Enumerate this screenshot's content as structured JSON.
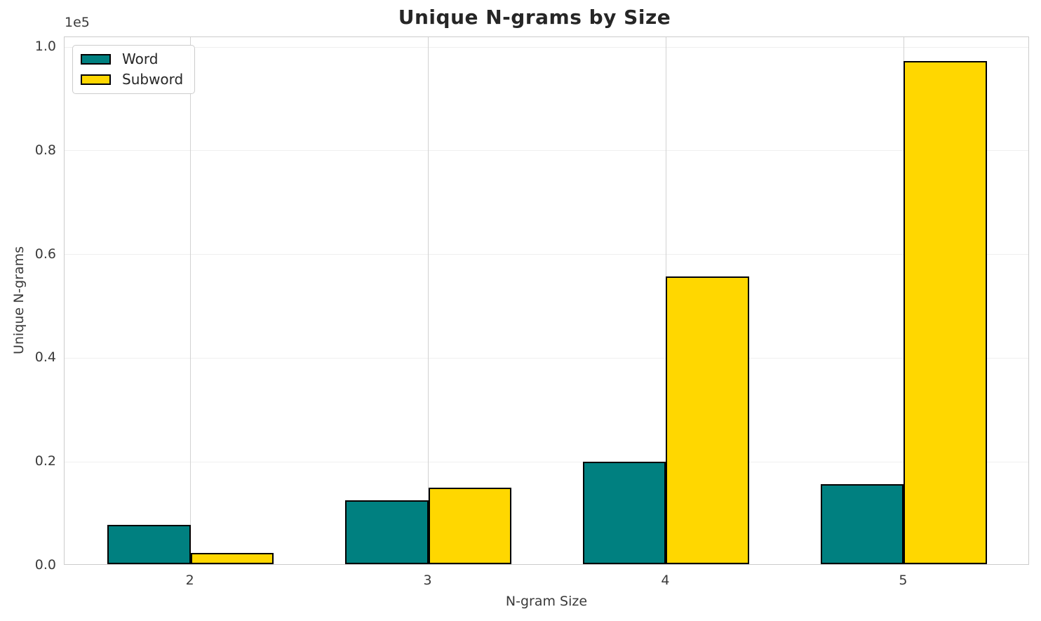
{
  "title": "Unique N-grams by Size",
  "axes": {
    "xlabel": "N-gram Size",
    "ylabel": "Unique N-grams",
    "offset_label": "1e5"
  },
  "legend": {
    "items": [
      {
        "label": "Word",
        "color": "#008080"
      },
      {
        "label": "Subword",
        "color": "#FFD700"
      }
    ]
  },
  "colors": {
    "word": "#008080",
    "subword": "#FFD700",
    "bar_edge": "#000000",
    "grid_horizontal": "#efefef",
    "grid_vertical": "#d2d2d2",
    "spine": "#cccccc",
    "title_text": "#262626",
    "tick_text": "#3a3a3a"
  },
  "chart_data": {
    "type": "bar",
    "title": "Unique N-grams by Size",
    "xlabel": "N-gram Size",
    "ylabel": "Unique N-grams",
    "y_scale_factor": "1e5",
    "categories": [
      2,
      3,
      4,
      5
    ],
    "series": [
      {
        "name": "Word",
        "color": "#008080",
        "values": [
          7600,
          12300,
          19700,
          15400
        ]
      },
      {
        "name": "Subword",
        "color": "#FFD700",
        "values": [
          2200,
          14800,
          55500,
          97000
        ]
      }
    ],
    "bar_width": 0.35,
    "xlim": [
      1.47,
      5.53
    ],
    "ylim": [
      0,
      101900
    ],
    "yticks": [
      0,
      20000,
      40000,
      60000,
      80000,
      100000
    ],
    "ytick_labels": [
      "0.0",
      "0.2",
      "0.4",
      "0.6",
      "0.8",
      "1.0"
    ],
    "xtick_labels": [
      "2",
      "3",
      "4",
      "5"
    ],
    "grid": true,
    "legend_position": "upper left"
  }
}
